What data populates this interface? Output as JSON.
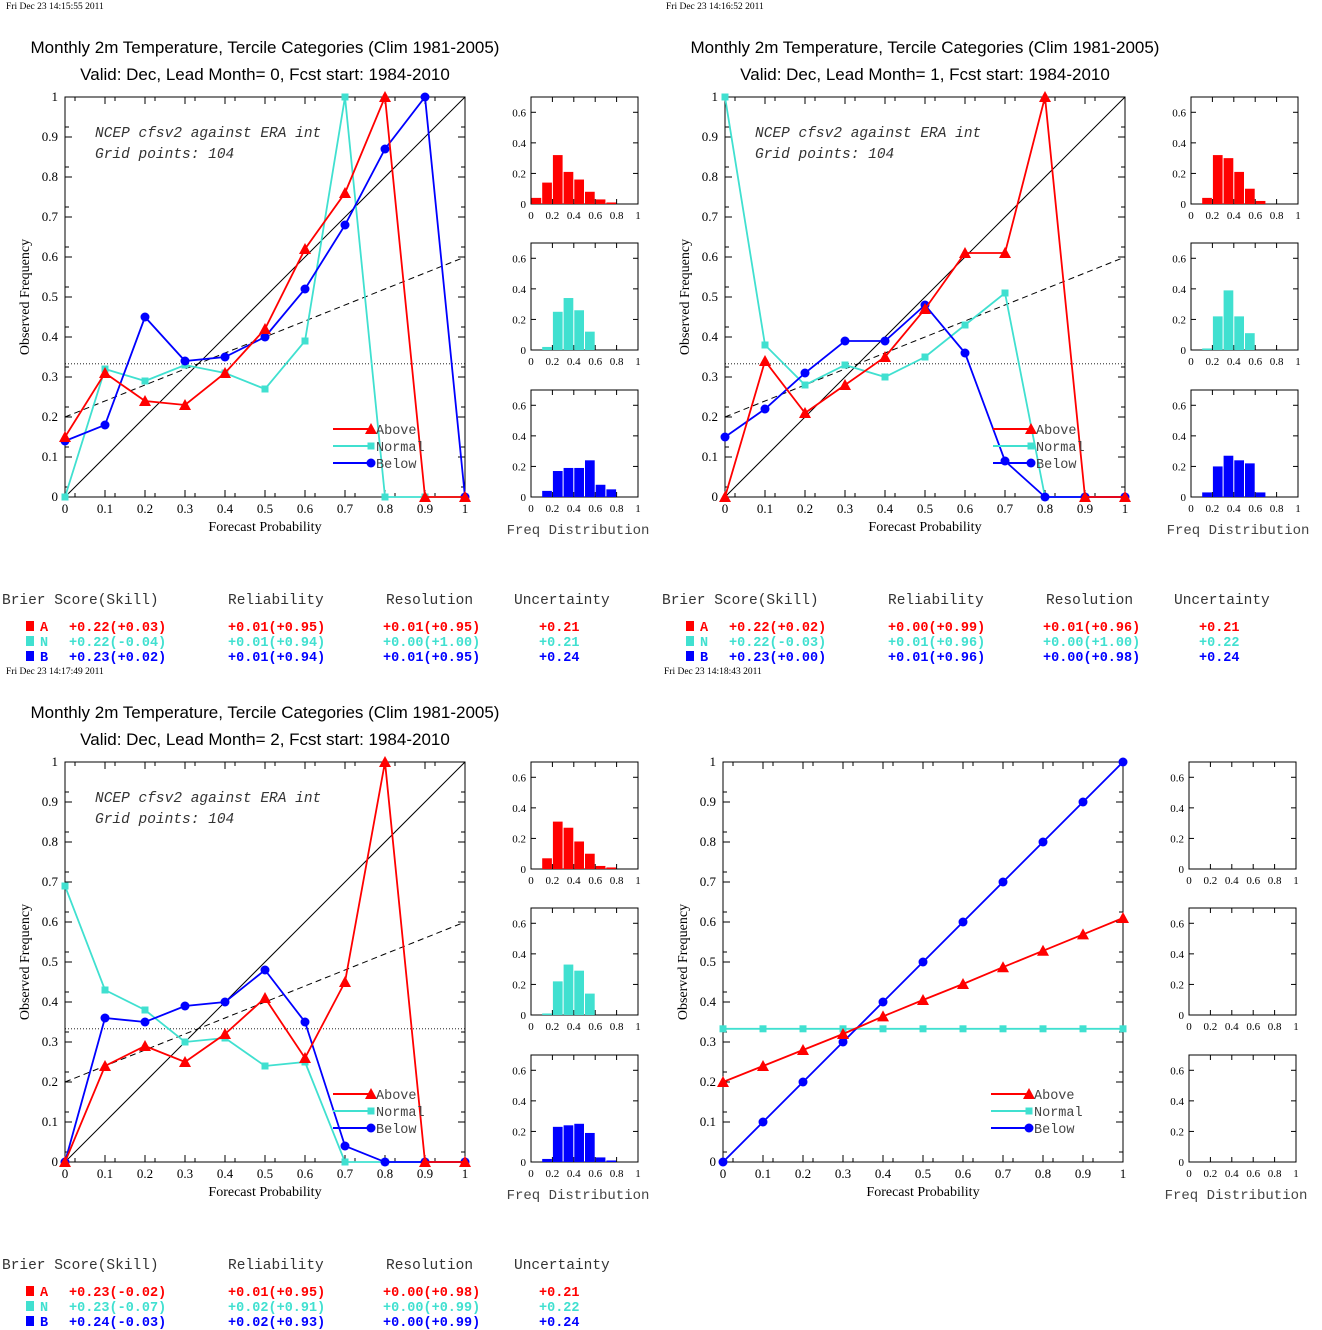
{
  "colors": {
    "above": "#ff0000",
    "normal": "#40e0d0",
    "below": "#0000ff"
  },
  "chart_data": [
    {
      "type": "line",
      "timestamp": "Fri Dec 23 14:15:55 2011",
      "title": "Monthly 2m Temperature, Tercile Categories (Clim 1981-2005)",
      "subtitle": "Valid: Dec, Lead Month= 0, Fcst start: 1984-2010",
      "annotation": [
        "NCEP cfsv2 against ERA int",
        "Grid points:  104"
      ],
      "xlabel": "Forecast Probability",
      "ylabel": "Observed Frequency",
      "xlim": [
        0,
        1
      ],
      "ylim": [
        0,
        1
      ],
      "x_ticks": [
        "0",
        "0.1",
        "0.2",
        "0.3",
        "0.4",
        "0.5",
        "0.6",
        "0.7",
        "0.8",
        "0.9",
        "1"
      ],
      "y_ticks": [
        "0",
        "0.1",
        "0.2",
        "0.3",
        "0.4",
        "0.5",
        "0.6",
        "0.7",
        "0.8",
        "0.9",
        "1"
      ],
      "x": [
        0,
        0.1,
        0.2,
        0.3,
        0.4,
        0.5,
        0.6,
        0.7,
        0.8,
        0.9,
        1
      ],
      "series": [
        {
          "name": "Above",
          "values": [
            0.15,
            0.31,
            0.24,
            0.23,
            0.31,
            0.42,
            0.62,
            0.76,
            1.0,
            0,
            0
          ]
        },
        {
          "name": "Normal",
          "values": [
            0,
            0.32,
            0.29,
            0.33,
            0.31,
            0.27,
            0.39,
            1.0,
            0,
            0,
            0
          ]
        },
        {
          "name": "Below",
          "values": [
            0.14,
            0.18,
            0.45,
            0.34,
            0.35,
            0.4,
            0.52,
            0.68,
            0.87,
            1.0,
            0
          ]
        }
      ],
      "reference_lines": {
        "perfect": [
          [
            0,
            0
          ],
          [
            1,
            1
          ]
        ],
        "no_skill": [
          [
            0,
            0.2
          ],
          [
            1,
            0.6
          ]
        ],
        "climatology_y": 0.333
      },
      "freq_distribution": {
        "xlabel": "Freq Distribution",
        "x_ticks": [
          "0",
          "0.2",
          "0.4",
          "0.6",
          "0.8",
          "1"
        ],
        "y_ticks": [
          "0",
          "0.2",
          "0.4",
          "0.6"
        ],
        "ylim": [
          0,
          0.7
        ],
        "above": [
          0.04,
          0.14,
          0.32,
          0.21,
          0.16,
          0.08,
          0.03,
          0.01,
          0,
          0
        ],
        "normal": [
          0,
          0.02,
          0.25,
          0.34,
          0.26,
          0.12,
          0,
          0,
          0,
          0
        ],
        "below": [
          0,
          0.04,
          0.17,
          0.19,
          0.19,
          0.24,
          0.08,
          0.05,
          0,
          0
        ]
      },
      "scores": {
        "headers": [
          "Brier Score(Skill)",
          "Reliability",
          "Resolution",
          "Uncertainty"
        ],
        "rows": [
          {
            "label": "A",
            "bs": "+0.22(+0.03)",
            "rel": "+0.01(+0.95)",
            "res": "+0.01(+0.95)",
            "unc": "+0.21"
          },
          {
            "label": "N",
            "bs": "+0.22(-0.04)",
            "rel": "+0.01(+0.94)",
            "res": "+0.00(+1.00)",
            "unc": "+0.21"
          },
          {
            "label": "B",
            "bs": "+0.23(+0.02)",
            "rel": "+0.01(+0.94)",
            "res": "+0.01(+0.95)",
            "unc": "+0.24"
          }
        ]
      }
    },
    {
      "type": "line",
      "timestamp": "Fri Dec 23 14:16:52 2011",
      "title": "Monthly 2m Temperature, Tercile Categories (Clim 1981-2005)",
      "subtitle": "Valid: Dec, Lead Month= 1, Fcst start: 1984-2010",
      "annotation": [
        "NCEP cfsv2 against ERA int",
        "Grid points:  104"
      ],
      "xlabel": "Forecast Probability",
      "ylabel": "Observed Frequency",
      "xlim": [
        0,
        1
      ],
      "ylim": [
        0,
        1
      ],
      "x_ticks": [
        "0",
        "0.1",
        "0.2",
        "0.3",
        "0.4",
        "0.5",
        "0.6",
        "0.7",
        "0.8",
        "0.9",
        "1"
      ],
      "y_ticks": [
        "0",
        "0.1",
        "0.2",
        "0.3",
        "0.4",
        "0.5",
        "0.6",
        "0.7",
        "0.8",
        "0.9",
        "1"
      ],
      "x": [
        0,
        0.1,
        0.2,
        0.3,
        0.4,
        0.5,
        0.6,
        0.7,
        0.8,
        0.9,
        1
      ],
      "series": [
        {
          "name": "Above",
          "values": [
            0,
            0.34,
            0.21,
            0.28,
            0.35,
            0.47,
            0.61,
            0.61,
            1.0,
            0,
            0
          ]
        },
        {
          "name": "Normal",
          "values": [
            1.0,
            0.38,
            0.28,
            0.33,
            0.3,
            0.35,
            0.43,
            0.51,
            0,
            0,
            0
          ]
        },
        {
          "name": "Below",
          "values": [
            0.15,
            0.22,
            0.31,
            0.39,
            0.39,
            0.48,
            0.36,
            0.09,
            0,
            0,
            0
          ]
        }
      ],
      "reference_lines": {
        "perfect": [
          [
            0,
            0
          ],
          [
            1,
            1
          ]
        ],
        "no_skill": [
          [
            0,
            0.2
          ],
          [
            1,
            0.6
          ]
        ],
        "climatology_y": 0.333
      },
      "freq_distribution": {
        "xlabel": "Freq Distribution",
        "x_ticks": [
          "0",
          "0.2",
          "0.4",
          "0.6",
          "0.8",
          "1"
        ],
        "y_ticks": [
          "0",
          "0.2",
          "0.4",
          "0.6"
        ],
        "ylim": [
          0,
          0.7
        ],
        "above": [
          0,
          0.04,
          0.32,
          0.3,
          0.21,
          0.1,
          0.02,
          0,
          0,
          0
        ],
        "normal": [
          0,
          0.01,
          0.22,
          0.39,
          0.22,
          0.11,
          0,
          0,
          0,
          0
        ],
        "below": [
          0,
          0.03,
          0.2,
          0.27,
          0.24,
          0.22,
          0.03,
          0,
          0,
          0
        ]
      },
      "scores": {
        "headers": [
          "Brier Score(Skill)",
          "Reliability",
          "Resolution",
          "Uncertainty"
        ],
        "rows": [
          {
            "label": "A",
            "bs": "+0.22(+0.02)",
            "rel": "+0.00(+0.99)",
            "res": "+0.01(+0.96)",
            "unc": "+0.21"
          },
          {
            "label": "N",
            "bs": "+0.22(-0.03)",
            "rel": "+0.01(+0.96)",
            "res": "+0.00(+1.00)",
            "unc": "+0.22"
          },
          {
            "label": "B",
            "bs": "+0.23(+0.00)",
            "rel": "+0.01(+0.96)",
            "res": "+0.00(+0.98)",
            "unc": "+0.24"
          }
        ]
      }
    },
    {
      "type": "line",
      "timestamp": "Fri Dec 23 14:17:49 2011",
      "title": "Monthly 2m Temperature, Tercile Categories (Clim 1981-2005)",
      "subtitle": "Valid: Dec, Lead Month= 2, Fcst start: 1984-2010",
      "annotation": [
        "NCEP cfsv2 against ERA int",
        "Grid points:  104"
      ],
      "xlabel": "Forecast Probability",
      "ylabel": "Observed Frequency",
      "xlim": [
        0,
        1
      ],
      "ylim": [
        0,
        1
      ],
      "x_ticks": [
        "0",
        "0.1",
        "0.2",
        "0.3",
        "0.4",
        "0.5",
        "0.6",
        "0.7",
        "0.8",
        "0.9",
        "1"
      ],
      "y_ticks": [
        "0",
        "0.1",
        "0.2",
        "0.3",
        "0.4",
        "0.5",
        "0.6",
        "0.7",
        "0.8",
        "0.9",
        "1"
      ],
      "x": [
        0,
        0.1,
        0.2,
        0.3,
        0.4,
        0.5,
        0.6,
        0.7,
        0.8,
        0.9,
        1
      ],
      "series": [
        {
          "name": "Above",
          "values": [
            0,
            0.24,
            0.29,
            0.25,
            0.32,
            0.41,
            0.26,
            0.45,
            1.0,
            0,
            0
          ]
        },
        {
          "name": "Normal",
          "values": [
            0.69,
            0.43,
            0.38,
            0.3,
            0.31,
            0.24,
            0.25,
            0,
            0,
            0,
            0
          ]
        },
        {
          "name": "Below",
          "values": [
            0,
            0.36,
            0.35,
            0.39,
            0.4,
            0.48,
            0.35,
            0.04,
            0,
            0,
            0
          ]
        }
      ],
      "reference_lines": {
        "perfect": [
          [
            0,
            0
          ],
          [
            1,
            1
          ]
        ],
        "no_skill": [
          [
            0,
            0.2
          ],
          [
            1,
            0.6
          ]
        ],
        "climatology_y": 0.333
      },
      "freq_distribution": {
        "xlabel": "Freq Distribution",
        "x_ticks": [
          "0",
          "0.2",
          "0.4",
          "0.6",
          "0.8",
          "1"
        ],
        "y_ticks": [
          "0",
          "0.2",
          "0.4",
          "0.6"
        ],
        "ylim": [
          0,
          0.7
        ],
        "above": [
          0,
          0.07,
          0.31,
          0.27,
          0.18,
          0.1,
          0.02,
          0.01,
          0,
          0
        ],
        "normal": [
          0,
          0.01,
          0.22,
          0.33,
          0.29,
          0.14,
          0,
          0,
          0,
          0
        ],
        "below": [
          0,
          0.02,
          0.23,
          0.24,
          0.25,
          0.19,
          0.03,
          0.01,
          0,
          0
        ]
      },
      "scores": {
        "headers": [
          "Brier Score(Skill)",
          "Reliability",
          "Resolution",
          "Uncertainty"
        ],
        "rows": [
          {
            "label": "A",
            "bs": "+0.23(-0.02)",
            "rel": "+0.01(+0.95)",
            "res": "+0.00(+0.98)",
            "unc": "+0.21"
          },
          {
            "label": "N",
            "bs": "+0.23(-0.07)",
            "rel": "+0.02(+0.91)",
            "res": "+0.00(+0.99)",
            "unc": "+0.22"
          },
          {
            "label": "B",
            "bs": "+0.24(-0.03)",
            "rel": "+0.02(+0.93)",
            "res": "+0.00(+0.99)",
            "unc": "+0.24"
          }
        ]
      }
    },
    {
      "type": "line",
      "timestamp": "Fri Dec 23 14:18:43 2011",
      "title": "",
      "subtitle": "",
      "annotation": [],
      "xlabel": "Forecast Probability",
      "ylabel": "Observed Frequency",
      "xlim": [
        0,
        1
      ],
      "ylim": [
        0,
        1
      ],
      "x_ticks": [
        "0",
        "0.1",
        "0.2",
        "0.3",
        "0.4",
        "0.5",
        "0.6",
        "0.7",
        "0.8",
        "0.9",
        "1"
      ],
      "y_ticks": [
        "0",
        "0.1",
        "0.2",
        "0.3",
        "0.4",
        "0.5",
        "0.6",
        "0.7",
        "0.8",
        "0.9",
        "1"
      ],
      "x": [
        0,
        0.1,
        0.2,
        0.3,
        0.4,
        0.5,
        0.6,
        0.7,
        0.8,
        0.9,
        1
      ],
      "series": [
        {
          "name": "Above",
          "values": [
            0.2,
            0.24,
            0.28,
            0.32,
            0.364,
            0.405,
            0.445,
            0.487,
            0.528,
            0.569,
            0.61
          ]
        },
        {
          "name": "Normal",
          "values": [
            0.333,
            0.333,
            0.333,
            0.333,
            0.333,
            0.333,
            0.333,
            0.333,
            0.333,
            0.333,
            0.333
          ]
        },
        {
          "name": "Below",
          "values": [
            0,
            0.1,
            0.2,
            0.3,
            0.4,
            0.5,
            0.6,
            0.7,
            0.8,
            0.9,
            1.0
          ]
        }
      ],
      "reference_lines": null,
      "freq_distribution": {
        "xlabel": "Freq Distribution",
        "x_ticks": [
          "0",
          "0.2",
          "0.4",
          "0.6",
          "0.8",
          "1"
        ],
        "y_ticks": [
          "0",
          "0.2",
          "0.4",
          "0.6"
        ],
        "ylim": [
          0,
          0.7
        ],
        "above": [],
        "normal": [],
        "below": []
      },
      "scores": null
    }
  ]
}
